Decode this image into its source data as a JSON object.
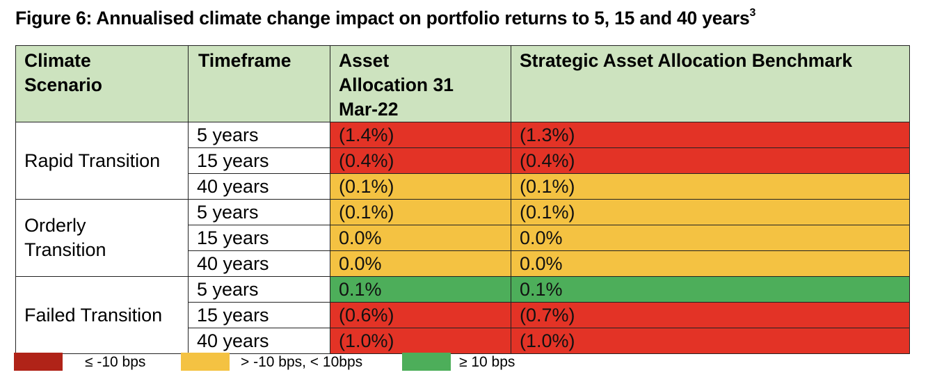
{
  "title": "Figure 6: Annualised climate change impact on portfolio returns to 5, 15 and 40 years",
  "title_superscript": "3",
  "colors": {
    "red": "#e33326",
    "amber": "#f4c242",
    "green": "#4dae5a",
    "header_bg": "#cde3bf",
    "legend_red": "#b02318"
  },
  "table": {
    "headers": {
      "scenario": "Climate Scenario",
      "timeframe": "Timeframe",
      "asset_allocation": "Asset Allocation 31 Mar-22",
      "benchmark": "Strategic Asset Allocation Benchmark"
    },
    "groups": [
      {
        "scenario": "Rapid Transition",
        "rows": [
          {
            "timeframe": "5 years",
            "asset": "(1.4%)",
            "asset_level": "red",
            "benchmark": "(1.3%)",
            "benchmark_level": "red"
          },
          {
            "timeframe": "15 years",
            "asset": "(0.4%)",
            "asset_level": "red",
            "benchmark": "(0.4%)",
            "benchmark_level": "red"
          },
          {
            "timeframe": "40 years",
            "asset": "(0.1%)",
            "asset_level": "amber",
            "benchmark": "(0.1%)",
            "benchmark_level": "amber"
          }
        ]
      },
      {
        "scenario": "Orderly Transition",
        "rows": [
          {
            "timeframe": "5 years",
            "asset": "(0.1%)",
            "asset_level": "amber",
            "benchmark": "(0.1%)",
            "benchmark_level": "amber"
          },
          {
            "timeframe": "15 years",
            "asset": "0.0%",
            "asset_level": "amber",
            "benchmark": "0.0%",
            "benchmark_level": "amber"
          },
          {
            "timeframe": "40 years",
            "asset": "0.0%",
            "asset_level": "amber",
            "benchmark": "0.0%",
            "benchmark_level": "amber"
          }
        ]
      },
      {
        "scenario": "Failed Transition",
        "rows": [
          {
            "timeframe": "5 years",
            "asset": "0.1%",
            "asset_level": "green",
            "benchmark": "0.1%",
            "benchmark_level": "green"
          },
          {
            "timeframe": "15 years",
            "asset": "(0.6%)",
            "asset_level": "red",
            "benchmark": "(0.7%)",
            "benchmark_level": "red"
          },
          {
            "timeframe": "40 years",
            "asset": "(1.0%)",
            "asset_level": "red",
            "benchmark": "(1.0%)",
            "benchmark_level": "red"
          }
        ]
      }
    ]
  },
  "legend": [
    {
      "label": "≤ -10 bps",
      "color": "#b02318"
    },
    {
      "label": "> -10 bps, < 10bps",
      "color": "#f4c242"
    },
    {
      "label": "≥ 10 bps",
      "color": "#4dae5a"
    }
  ]
}
